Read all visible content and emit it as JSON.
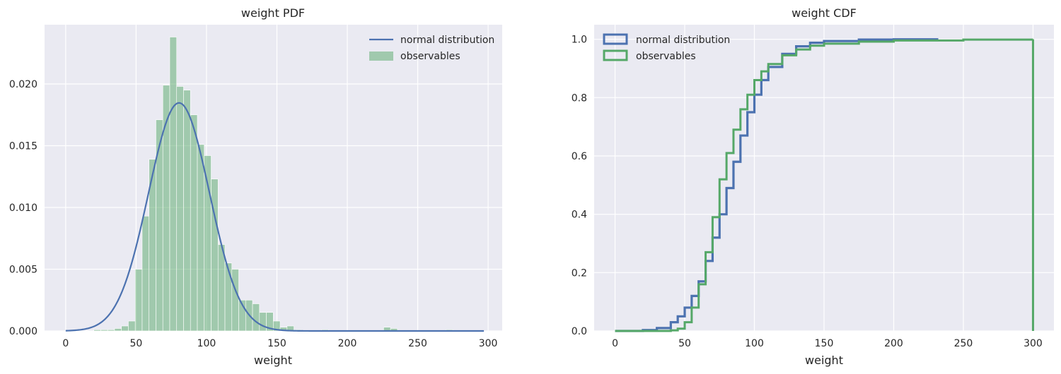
{
  "chart_data": [
    {
      "type": "bar",
      "title": "weight PDF",
      "xlabel": "weight",
      "ylabel": "",
      "xlim": [
        -15,
        310
      ],
      "ylim": [
        0,
        0.0248
      ],
      "xticks": [
        0,
        50,
        100,
        150,
        200,
        250,
        300
      ],
      "yticks": [
        0.0,
        0.005,
        0.01,
        0.015,
        0.02
      ],
      "ytick_labels": [
        "0.000",
        "0.005",
        "0.010",
        "0.015",
        "0.020"
      ],
      "grid": true,
      "legend_position": "top-right",
      "legend": [
        "normal distribution",
        "observables"
      ],
      "colors": {
        "line": "#4c72b0",
        "bars": "#55a868",
        "background": "#eaeaf2",
        "grid": "#ffffff"
      },
      "series": [
        {
          "name": "normal distribution",
          "type": "line",
          "distribution": {
            "mean": 80.5,
            "std": 21.6
          },
          "x": [
            0,
            10,
            20,
            30,
            40,
            50,
            60,
            70,
            80,
            90,
            100,
            110,
            120,
            130,
            140,
            150,
            160,
            180,
            200,
            250,
            297
          ],
          "y": [
            0.0001,
            0.0002,
            0.0008,
            0.0017,
            0.0032,
            0.0068,
            0.0118,
            0.0164,
            0.0185,
            0.017,
            0.0122,
            0.0072,
            0.0034,
            0.0013,
            0.0004,
            0.0001,
            0.0,
            0.0,
            0.0,
            0.0,
            0.0
          ]
        },
        {
          "name": "observables",
          "type": "histogram",
          "bin_width": 4.9,
          "bin_starts": [
            20.0,
            24.9,
            29.8,
            34.7,
            39.6,
            44.5,
            49.4,
            54.3,
            59.2,
            64.1,
            69.0,
            73.9,
            78.8,
            83.7,
            88.6,
            93.5,
            98.4,
            103.3,
            108.2,
            113.1,
            118.0,
            122.9,
            127.8,
            132.7,
            137.6,
            142.5,
            147.4,
            152.3,
            157.2,
            162.1,
            181.7,
            225.8,
            230.7,
            270.0
          ],
          "values": [
            0.0001,
            0.0001,
            0.0001,
            0.0002,
            0.0004,
            0.0008,
            0.005,
            0.0093,
            0.0139,
            0.0171,
            0.0199,
            0.0238,
            0.0198,
            0.0195,
            0.0175,
            0.0151,
            0.0142,
            0.0123,
            0.007,
            0.0055,
            0.005,
            0.0025,
            0.0025,
            0.0022,
            0.0015,
            0.0015,
            0.0008,
            0.0003,
            0.0004,
            0.0001,
            0.0001,
            0.0003,
            0.0002,
            0.0001
          ]
        }
      ]
    },
    {
      "type": "line",
      "title": "weight CDF",
      "xlabel": "weight",
      "ylabel": "",
      "xlim": [
        -15,
        315
      ],
      "ylim": [
        0,
        1.05
      ],
      "xticks": [
        0,
        50,
        100,
        150,
        200,
        250,
        300
      ],
      "yticks": [
        0.0,
        0.2,
        0.4,
        0.6,
        0.8,
        1.0
      ],
      "ytick_labels": [
        "0.0",
        "0.2",
        "0.4",
        "0.6",
        "0.8",
        "1.0"
      ],
      "grid": true,
      "legend_position": "top-left",
      "legend": [
        "normal distribution",
        "observables"
      ],
      "colors": {
        "normal": "#4c72b0",
        "observables": "#55a868",
        "background": "#eaeaf2",
        "grid": "#ffffff"
      },
      "series": [
        {
          "name": "normal distribution",
          "type": "step",
          "x": [
            0,
            20,
            30,
            40,
            45,
            50,
            55,
            60,
            65,
            70,
            75,
            80,
            85,
            90,
            95,
            100,
            105,
            110,
            120,
            130,
            140,
            150,
            175,
            200,
            232
          ],
          "y": [
            0.0,
            0.003,
            0.01,
            0.03,
            0.05,
            0.08,
            0.12,
            0.17,
            0.24,
            0.32,
            0.4,
            0.49,
            0.58,
            0.67,
            0.75,
            0.81,
            0.86,
            0.905,
            0.95,
            0.976,
            0.988,
            0.994,
            0.999,
            1.0,
            1.0
          ]
        },
        {
          "name": "observables",
          "type": "step",
          "x": [
            0,
            40,
            45,
            50,
            55,
            60,
            65,
            70,
            75,
            80,
            85,
            90,
            95,
            100,
            105,
            110,
            120,
            130,
            140,
            150,
            175,
            200,
            250,
            300,
            300
          ],
          "y": [
            0.0,
            0.002,
            0.008,
            0.03,
            0.08,
            0.16,
            0.27,
            0.39,
            0.52,
            0.61,
            0.69,
            0.76,
            0.81,
            0.86,
            0.89,
            0.915,
            0.945,
            0.965,
            0.978,
            0.985,
            0.992,
            0.996,
            0.999,
            1.0,
            0.0
          ]
        }
      ]
    }
  ]
}
